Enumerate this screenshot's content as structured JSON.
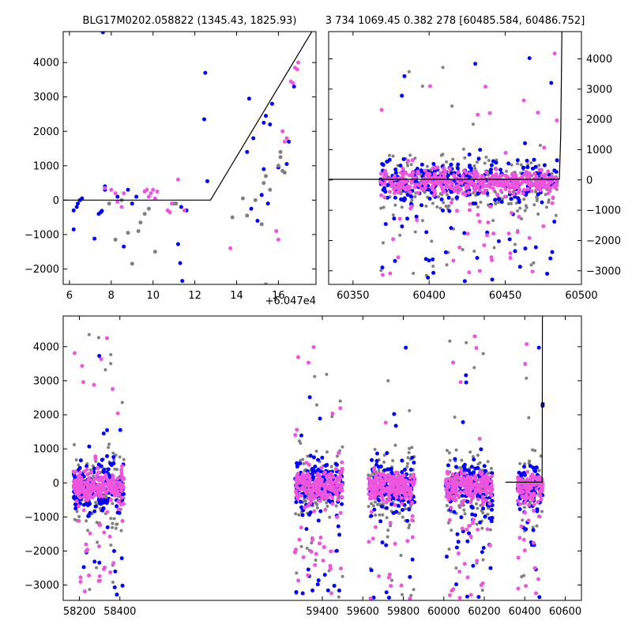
{
  "chart_data": [
    {
      "type": "scatter",
      "title": "BLG17M0202.058822 (1345.43, 1825.93)",
      "x_offset_label": "+6.047e4",
      "xlim": [
        5.7,
        17.8
      ],
      "ylim": [
        -2450,
        4900
      ],
      "xticks": [
        6,
        8,
        10,
        12,
        14,
        16
      ],
      "yticks": [
        -2000,
        -1000,
        0,
        1000,
        2000,
        3000,
        4000
      ],
      "model": {
        "x": [
          5.7,
          12.75,
          17.7
        ],
        "y": [
          0,
          0,
          5000
        ]
      },
      "series": [
        {
          "color": "#0000ff",
          "points": [
            [
              6.2,
              -850
            ],
            [
              6.2,
              -300
            ],
            [
              6.35,
              -200
            ],
            [
              6.4,
              -100
            ],
            [
              6.5,
              0
            ],
            [
              6.6,
              50
            ],
            [
              7.2,
              -1120
            ],
            [
              7.4,
              -400
            ],
            [
              7.5,
              -350
            ],
            [
              7.55,
              -310
            ],
            [
              7.7,
              400
            ],
            [
              7.7,
              300
            ],
            [
              7.6,
              4880
            ],
            [
              8.3,
              100
            ],
            [
              8.6,
              -1350
            ],
            [
              8.8,
              300
            ],
            [
              9.0,
              -100
            ],
            [
              9.2,
              100
            ],
            [
              11.2,
              -1280
            ],
            [
              11.3,
              -1830
            ],
            [
              11.4,
              -2350
            ],
            [
              11.35,
              -200
            ],
            [
              11.6,
              -300
            ],
            [
              12.45,
              2350
            ],
            [
              12.5,
              3700
            ],
            [
              12.6,
              550
            ],
            [
              14.5,
              1400
            ],
            [
              14.6,
              2950
            ],
            [
              14.8,
              1800
            ],
            [
              14.7,
              -250
            ],
            [
              15.0,
              -600
            ],
            [
              15.3,
              2250
            ],
            [
              15.5,
              -100
            ],
            [
              15.2,
              150
            ],
            [
              15.3,
              900
            ],
            [
              15.4,
              2450
            ],
            [
              15.6,
              2200
            ],
            [
              15.7,
              2800
            ],
            [
              16.0,
              950
            ],
            [
              16.4,
              1050
            ],
            [
              16.5,
              1700
            ],
            [
              16.75,
              3300
            ]
          ]
        },
        {
          "color": "#808080",
          "points": [
            [
              7.9,
              -100
            ],
            [
              8.2,
              -1150
            ],
            [
              8.5,
              0
            ],
            [
              8.8,
              -950
            ],
            [
              9.0,
              -1850
            ],
            [
              9.3,
              -900
            ],
            [
              9.4,
              -650
            ],
            [
              9.6,
              -400
            ],
            [
              9.8,
              -250
            ],
            [
              10.1,
              -1500
            ],
            [
              11.0,
              -100
            ],
            [
              11.1,
              -100
            ],
            [
              13.8,
              -500
            ],
            [
              14.3,
              50
            ],
            [
              14.5,
              -450
            ],
            [
              14.9,
              0
            ],
            [
              15.2,
              -700
            ],
            [
              15.3,
              500
            ],
            [
              15.4,
              -2450
            ],
            [
              15.4,
              700
            ],
            [
              15.6,
              300
            ],
            [
              16.0,
              1000
            ],
            [
              16.1,
              1250
            ],
            [
              16.2,
              850
            ],
            [
              16.3,
              800
            ],
            [
              16.1,
              1400
            ]
          ]
        },
        {
          "color": "#ee55dd",
          "points": [
            [
              7.7,
              350
            ],
            [
              8.0,
              300
            ],
            [
              8.2,
              200
            ],
            [
              8.3,
              -50
            ],
            [
              8.5,
              -200
            ],
            [
              8.6,
              200
            ],
            [
              9.6,
              250
            ],
            [
              9.7,
              300
            ],
            [
              9.8,
              100
            ],
            [
              9.9,
              200
            ],
            [
              10.0,
              300
            ],
            [
              10.1,
              50
            ],
            [
              10.2,
              250
            ],
            [
              10.7,
              -300
            ],
            [
              10.8,
              -350
            ],
            [
              10.9,
              -100
            ],
            [
              11.2,
              600
            ],
            [
              11.5,
              -300
            ],
            [
              13.7,
              -1400
            ],
            [
              15.9,
              -900
            ],
            [
              16.0,
              -1150
            ],
            [
              16.2,
              2000
            ],
            [
              16.3,
              1700
            ],
            [
              16.4,
              1800
            ],
            [
              16.6,
              3450
            ],
            [
              16.7,
              3400
            ],
            [
              16.8,
              3850
            ],
            [
              16.9,
              3800
            ],
            [
              16.95,
              4000
            ]
          ]
        }
      ]
    },
    {
      "type": "scatter",
      "title": "3 734 1069.45 0.382 278 [60485.584, 60486.752]",
      "xlim": [
        60334,
        60500
      ],
      "ylim": [
        -3450,
        4900
      ],
      "xticks": [
        60350,
        60400,
        60450,
        60500
      ],
      "yticks": [
        -3000,
        -2000,
        -1000,
        0,
        1000,
        2000,
        3000,
        4000
      ],
      "model": {
        "x": [
          60334,
          60485.5,
          60486.4,
          60487.2
        ],
        "y": [
          20,
          20,
          1500,
          5000
        ]
      },
      "band": {
        "x_ranges": [
          [
            60368,
            60484
          ]
        ],
        "y_center": -60,
        "y_spread": 400
      }
    },
    {
      "type": "scatter",
      "xlim": [
        58120,
        60680
      ],
      "ylim": [
        -3450,
        4900
      ],
      "xticks": [
        58200,
        58400,
        59400,
        59600,
        59800,
        60000,
        60200,
        60400,
        60600
      ],
      "yticks": [
        -3000,
        -2000,
        -1000,
        0,
        1000,
        2000,
        3000,
        4000
      ],
      "model": {
        "x": [
          60305,
          60485.5,
          60486.4,
          60487.2
        ],
        "y": [
          20,
          20,
          1500,
          5000
        ]
      },
      "band": {
        "x_ranges": [
          [
            58170,
            58420
          ],
          [
            59265,
            59500
          ],
          [
            59625,
            59855
          ],
          [
            60010,
            60240
          ],
          [
            60365,
            60490
          ]
        ],
        "y_center": -100,
        "y_spread": 450
      }
    }
  ]
}
